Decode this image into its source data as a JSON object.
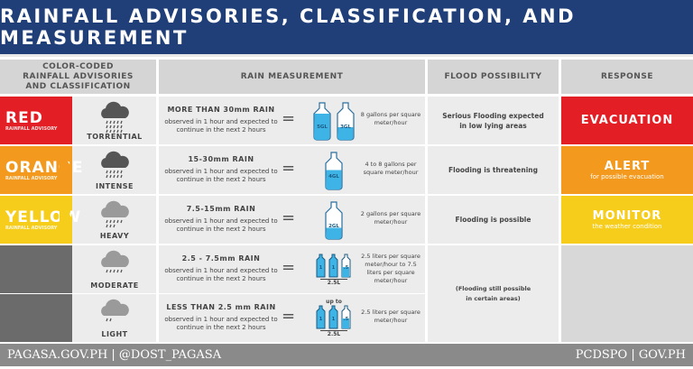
{
  "title": "RAINFALL ADVISORIES, CLASSIFICATION, AND MEASUREMENT",
  "headers": {
    "classification": "COLOR-CODED RAINFALL ADVISORIES AND CLASSIFICATION",
    "measurement": "RAIN MEASUREMENT",
    "flood": "FLOOD POSSIBILITY",
    "response": "RESPONSE"
  },
  "rows": [
    {
      "advisory": "RED",
      "advisory_sub": "RAINFALL ADVISORY",
      "color": "#e31e24",
      "class": "TORRENTIAL",
      "rain": "MORE THAN 30mm RAIN",
      "detail": "observed in 1 hour and expected to continue in the next 2 hours",
      "bottles": [
        "5GL",
        "3GL"
      ],
      "volume": "8 gallons per square meter/hour",
      "flood": "Serious Flooding expected in low lying areas",
      "response": "EVACUATION",
      "response_sub": ""
    },
    {
      "advisory": "ORANGE",
      "advisory_sub": "RAINFALL ADVISORY",
      "color": "#f39a1e",
      "class": "INTENSE",
      "rain": "15-30mm RAIN",
      "detail": "observed in 1 hour and expected to continue in the next 2 hours",
      "bottles": [
        "4GL"
      ],
      "volume": "4 to 8 gallons per square meter/hour",
      "flood": "Flooding is threatening",
      "response": "ALERT",
      "response_sub": "for possible evacuation"
    },
    {
      "advisory": "YELLOW",
      "advisory_sub": "RAINFALL ADVISORY",
      "color": "#f7cd1c",
      "class": "HEAVY",
      "rain": "7.5-15mm RAIN",
      "detail": "observed in 1 hour and expected to continue in the next 2 hours",
      "bottles": [
        "2GL"
      ],
      "volume": "2 gallons per square meter/hour",
      "flood": "Flooding is possible",
      "response": "MONITOR",
      "response_sub": "the weather condition"
    },
    {
      "advisory": "",
      "advisory_sub": "",
      "color": "#6b6b6b",
      "class": "MODERATE",
      "rain": "2.5 - 7.5mm RAIN",
      "detail": "observed in 1 hour and expected to continue in the next 2 hours",
      "bottle_label": "2.5L",
      "bottle_prefix": "",
      "volume": "2.5 liters per square meter/hour to 7.5 liters per square meter/hour"
    },
    {
      "advisory": "",
      "advisory_sub": "",
      "color": "#6b6b6b",
      "class": "LIGHT",
      "rain": "LESS THAN 2.5 mm RAIN",
      "detail": "observed in 1 hour and expected to continue in the next 2 hours",
      "bottle_label": "2.5L",
      "bottle_prefix": "up to",
      "volume": "2.5 liters per square meter/hour"
    }
  ],
  "flood_shared": "(Flooding still possible in certain areas)",
  "small_bottle_labels": [
    "1",
    "1",
    ".5"
  ],
  "footer": {
    "left": "PAGASA.GOV.PH | @DOST_PAGASA",
    "right": "PCDSPO | GOV.PH"
  }
}
